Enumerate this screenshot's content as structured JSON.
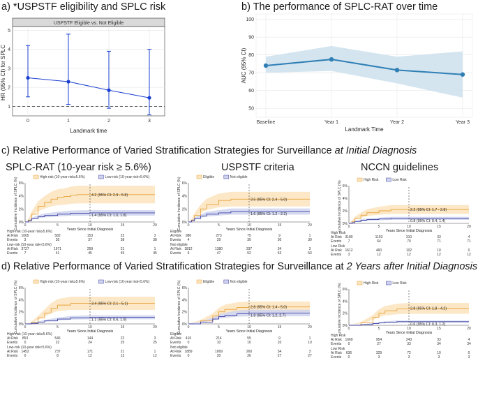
{
  "panel_a": {
    "title": "a) *USPSTF eligibility and SPLC risk",
    "strip": "USPSTF Eligible vs. Not Eligible",
    "ylabel": "HR (95% CI) for SPLC",
    "xlabel": "Landmark time",
    "yticks": [
      "1",
      "2",
      "3",
      "4",
      "5"
    ],
    "xticks": [
      "0",
      "1",
      "2",
      "3"
    ]
  },
  "panel_b": {
    "title": "b) The performance of SPLC-RAT over time",
    "ylabel": "AUC (95% CI)",
    "xlabel": "Landmark Time",
    "yticks": [
      "50",
      "60",
      "70",
      "80",
      "90",
      "100"
    ],
    "xticks": [
      "Baseline",
      "Year 1",
      "Year 2",
      "Year 3"
    ]
  },
  "panel_c": {
    "title_prefix": "c) Relative Performance of Varied Stratification Strategies for Surveillance ",
    "title_italic": "at Initial Diagnosis",
    "plots": [
      {
        "heading": "SPLC-RAT (10-year risk ≥ 5.6%)",
        "legend": [
          "High-risk (10-year risk≥5.6%)",
          "Low-risk (10-year risk<5.6%)"
        ],
        "ylabel": "Cumulative Incidence of SPLC (%)",
        "xlabel": "Years Since Initial Diagnosis",
        "yticks": [
          "0%",
          "2%",
          "4%",
          "6%"
        ],
        "xticks": [
          "0",
          "5",
          "10",
          "15",
          "20"
        ],
        "ann_high": "4.2 (95% CI: 2.9 - 5.8)",
        "ann_low": "1.4 (95% CI: 1.0, 1.8)",
        "g1": "High-risk (10-year risk≥5.6%)",
        "g1_atrisk": [
          "1065",
          "582",
          "153",
          "22",
          "3"
        ],
        "g1_events": [
          "3",
          "35",
          "37",
          "38",
          "38"
        ],
        "g2": "Low-risk (10-year risk<5.6%)",
        "g2_atrisk": [
          "3727",
          "1671",
          "259",
          "21",
          "1"
        ],
        "g2_events": [
          "7",
          "41",
          "45",
          "45",
          "45"
        ]
      },
      {
        "heading": "USPSTF criteria",
        "legend": [
          "Eligible",
          "Not eligible"
        ],
        "ylabel": "Cumulative Incidence of SPLC (%)",
        "xlabel": "Years Since Initial Diagnosis",
        "yticks": [
          "0%",
          "2%",
          "4%",
          "6%"
        ],
        "xticks": [
          "0",
          "5",
          "10",
          "15",
          "20"
        ],
        "ann_high": "3.5 (95% CI: 2.4 - 5.0)",
        "ann_low": "1.6 (95% CI: 1.2 - 2.2)",
        "g1": "Eligible",
        "g1_atrisk": [
          "980",
          "273",
          "75",
          "9",
          "1"
        ],
        "g1_events": [
          "4",
          "29",
          "30",
          "30",
          "30"
        ],
        "g2": "Not eligible",
        "g2_atrisk": [
          "3812",
          "1380",
          "337",
          "34",
          "3"
        ],
        "g2_events": [
          "6",
          "47",
          "52",
          "53",
          "53"
        ]
      },
      {
        "heading": "NCCN guidelines",
        "legend": [
          "High Risk",
          "Low Risk"
        ],
        "ylabel": "umulative Incidence of SPLC (%)",
        "xlabel": "Years Since Initial Diagnosis",
        "yticks": [
          "0%",
          "2%",
          "4%",
          "6%"
        ],
        "xticks": [
          "0",
          "5",
          "10",
          "15",
          "20"
        ],
        "ann_high": "2.2 (95% CI: 1.7 - 2.8)",
        "ann_low": "0.8 (95% CI: 0.4, 1.4)",
        "g1": "High Risk",
        "g1_atrisk": [
          "3180",
          "1193",
          "310",
          "33",
          "4"
        ],
        "g1_events": [
          "7",
          "64",
          "70",
          "71",
          "71"
        ],
        "g2": "Low Risk",
        "g2_atrisk": [
          "1612",
          "460",
          "102",
          "10",
          "0"
        ],
        "g2_events": [
          "3",
          "12",
          "12",
          "12",
          "12"
        ]
      }
    ]
  },
  "panel_d": {
    "title_prefix": "d) Relative Performance of Varied Stratification Strategies for Surveillance at ",
    "title_italic": "2 Years after Initial Diagnosis",
    "plots": [
      {
        "legend": [
          "High-risk (10-year risk≥5.6%)",
          "Low-risk (10-year risk<5.6%)"
        ],
        "ylabel": "Cumulative Incidence of SPLC (%)",
        "xlabel": "Years Since Initial Diagnosis",
        "yticks": [
          "0%",
          "2%",
          "4%",
          "6%"
        ],
        "xticks": [
          "0",
          "5",
          "10",
          "15",
          "20"
        ],
        "ann_high": "3.4 (95% CI: 2.1 - 5.1)",
        "ann_low": "1.1 (95% CI: 0.6, 1.9)",
        "g1": "High-risk (10-year risk≥5.6%)",
        "g1_atrisk": [
          "853",
          "546",
          "144",
          "22",
          "3"
        ],
        "g1_events": [
          "0",
          "22",
          "24",
          "25",
          "25"
        ],
        "g2": "Low-risk (10-year risk<5.6%)",
        "g2_atrisk": [
          "1452",
          "737",
          "171",
          "21",
          "1"
        ],
        "g2_events": [
          "0",
          "8",
          "12",
          "12",
          "12"
        ]
      },
      {
        "legend": [
          "Eligible",
          "Not eligible"
        ],
        "ylabel": "Cumulative Incidence of SPLC (%)",
        "xlabel": "Years Since Initial Diagnosis",
        "yticks": [
          "0%",
          "2%",
          "4%",
          "6%"
        ],
        "xticks": [
          "0",
          "5",
          "10",
          "15",
          "20"
        ],
        "ann_high": "2.8 (95% CI: 1.4 - 5.0)",
        "ann_low": "1.8 (95% CI: 1.2, 2.7)",
        "g1": "Eligible",
        "g1_atrisk": [
          "416",
          "214",
          "55",
          "9",
          "1"
        ],
        "g1_events": [
          "0",
          "10",
          "10",
          "10",
          "10"
        ],
        "g2": "Not eligible",
        "g2_atrisk": [
          "1889",
          "1069",
          "260",
          "34",
          "3"
        ],
        "g2_events": [
          "0",
          "20",
          "26",
          "27",
          "27"
        ]
      },
      {
        "legend": [
          "High Risk",
          "Low Risk"
        ],
        "ylabel": "umulative Incidence of SPLC (%)",
        "xlabel": "Years Since Initial Diagnosis",
        "yticks": [
          "0%",
          "2%",
          "4%",
          "6%"
        ],
        "xticks": [
          "0",
          "5",
          "10",
          "15",
          "20"
        ],
        "ann_high": "2.8 (95% CI: 1.8 - 4.2)",
        "ann_low": "0.6 (95% CI: 0.3, 1.2)",
        "g1": "High Risk",
        "g1_atrisk": [
          "1669",
          "954",
          "243",
          "33",
          "4"
        ],
        "g1_events": [
          "0",
          "27",
          "33",
          "34",
          "34"
        ],
        "g2": "Low Risk",
        "g2_atrisk": [
          "636",
          "329",
          "72",
          "10",
          "0"
        ],
        "g2_events": [
          "0",
          "3",
          "3",
          "3",
          "3"
        ]
      }
    ]
  },
  "labels": {
    "at_risk": "At Risk",
    "events": "Events"
  },
  "colors": {
    "panel_a_line": "#1a3fd1",
    "panel_b_line": "#2f7fb5",
    "panel_b_band": "#cfe2ee",
    "high": "#e8a43a",
    "high_band": "#fbe3bd",
    "low": "#3b3fa3",
    "low_band": "#cfd3ee"
  },
  "chart_data": [
    {
      "type": "scatter",
      "title": "a) *USPSTF eligibility and SPLC risk",
      "xlabel": "Landmark time",
      "ylabel": "HR (95% CI) for SPLC",
      "x": [
        0,
        1,
        2,
        3
      ],
      "y": [
        2.5,
        2.3,
        1.85,
        1.45
      ],
      "lower": [
        1.5,
        1.1,
        0.9,
        0.55
      ],
      "upper": [
        4.2,
        4.8,
        3.9,
        4.0
      ],
      "ylim": [
        0.5,
        5.2
      ],
      "reference_line": 1,
      "grid": true
    },
    {
      "type": "line",
      "title": "b) The performance of SPLC-RAT over time",
      "xlabel": "Landmark Time",
      "ylabel": "AUC (95% CI)",
      "categories": [
        "Baseline",
        "Year 1",
        "Year 2",
        "Year 3"
      ],
      "values": [
        74,
        77.5,
        71.5,
        69
      ],
      "lower": [
        70,
        71,
        64,
        56
      ],
      "upper": [
        79,
        85,
        79,
        82
      ],
      "ylim": [
        45,
        103
      ],
      "grid": true
    },
    {
      "type": "line",
      "panel": "c",
      "plot": "SPLC-RAT (10-year risk ≥ 5.6%)",
      "xlim": [
        0,
        20
      ],
      "ylim": [
        0,
        6
      ],
      "series": [
        {
          "name": "High-risk (10-year risk≥5.6%)",
          "x": [
            0,
            0.5,
            1,
            2,
            3,
            4,
            5,
            6,
            7,
            8,
            10,
            20
          ],
          "y": [
            0,
            0.3,
            1.2,
            2.4,
            3.0,
            3.5,
            3.8,
            3.9,
            4.1,
            4.2,
            4.2,
            4.2
          ]
        },
        {
          "name": "Low-risk (10-year risk<5.6%)",
          "x": [
            0,
            0.5,
            1,
            2,
            3,
            5,
            7,
            10,
            20
          ],
          "y": [
            0,
            0.2,
            0.5,
            0.8,
            1.0,
            1.2,
            1.35,
            1.4,
            1.4
          ]
        }
      ]
    },
    {
      "type": "line",
      "panel": "c",
      "plot": "USPSTF criteria",
      "xlim": [
        0,
        20
      ],
      "ylim": [
        0,
        6
      ],
      "series": [
        {
          "name": "Eligible",
          "x": [
            0,
            0.5,
            1,
            2,
            3,
            5,
            7,
            10,
            20
          ],
          "y": [
            0,
            0.3,
            1.0,
            2.0,
            2.7,
            3.3,
            3.5,
            3.5,
            3.5
          ]
        },
        {
          "name": "Not eligible",
          "x": [
            0,
            0.5,
            1,
            2,
            3,
            5,
            7,
            10,
            20
          ],
          "y": [
            0,
            0.2,
            0.5,
            0.9,
            1.2,
            1.4,
            1.6,
            1.6,
            1.6
          ]
        }
      ]
    },
    {
      "type": "line",
      "panel": "c",
      "plot": "NCCN guidelines",
      "xlim": [
        0,
        20
      ],
      "ylim": [
        0,
        6
      ],
      "series": [
        {
          "name": "High Risk",
          "x": [
            0,
            0.5,
            1,
            2,
            3,
            5,
            7,
            10,
            20
          ],
          "y": [
            0,
            0.3,
            0.8,
            1.3,
            1.7,
            2.0,
            2.2,
            2.2,
            2.2
          ]
        },
        {
          "name": "Low Risk",
          "x": [
            0,
            0.5,
            1,
            2,
            3,
            5,
            7,
            10,
            20
          ],
          "y": [
            0,
            0.1,
            0.3,
            0.5,
            0.6,
            0.7,
            0.8,
            0.8,
            0.8
          ]
        }
      ]
    },
    {
      "type": "line",
      "panel": "d",
      "plot": "SPLC-RAT",
      "xlim": [
        0,
        20
      ],
      "ylim": [
        0,
        6
      ],
      "series": [
        {
          "name": "High-risk (10-year risk≥5.6%)",
          "x": [
            0,
            1,
            2,
            3,
            4,
            5,
            7,
            10,
            20
          ],
          "y": [
            0,
            0.3,
            1.0,
            1.8,
            2.6,
            3.1,
            3.4,
            3.4,
            3.4
          ]
        },
        {
          "name": "Low-risk (10-year risk<5.6%)",
          "x": [
            0,
            1,
            2,
            3,
            5,
            7,
            10,
            20
          ],
          "y": [
            0,
            0.1,
            0.3,
            0.5,
            0.8,
            1.0,
            1.1,
            1.1
          ]
        }
      ]
    },
    {
      "type": "line",
      "panel": "d",
      "plot": "USPSTF criteria",
      "xlim": [
        0,
        20
      ],
      "ylim": [
        0,
        6
      ],
      "series": [
        {
          "name": "Eligible",
          "x": [
            0,
            2,
            4,
            5,
            6,
            8,
            10,
            20
          ],
          "y": [
            0,
            0.5,
            1.3,
            2.0,
            2.4,
            2.7,
            2.8,
            2.8
          ]
        },
        {
          "name": "Not eligible",
          "x": [
            0,
            2,
            4,
            5,
            6,
            8,
            10,
            20
          ],
          "y": [
            0,
            0.3,
            0.8,
            1.2,
            1.4,
            1.7,
            1.8,
            1.8
          ]
        }
      ]
    },
    {
      "type": "line",
      "panel": "d",
      "plot": "NCCN guidelines",
      "xlim": [
        0,
        20
      ],
      "ylim": [
        0,
        6
      ],
      "series": [
        {
          "name": "High Risk",
          "x": [
            0,
            2,
            4,
            5,
            6,
            8,
            10,
            20
          ],
          "y": [
            0,
            0.4,
            1.3,
            2.0,
            2.4,
            2.7,
            2.8,
            2.8
          ]
        },
        {
          "name": "Low Risk",
          "x": [
            0,
            2,
            4,
            5,
            6,
            8,
            10,
            20
          ],
          "y": [
            0,
            0.1,
            0.3,
            0.4,
            0.5,
            0.6,
            0.6,
            0.6
          ]
        }
      ]
    }
  ]
}
